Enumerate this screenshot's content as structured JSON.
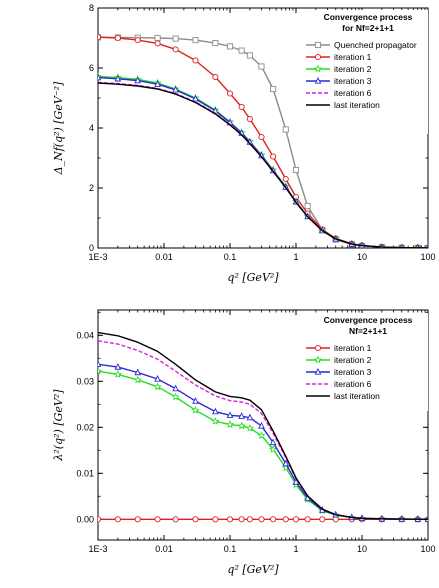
{
  "chart_data": [
    {
      "type": "line",
      "xscale": "log",
      "xlim": [
        0.001,
        100
      ],
      "ylim": [
        0,
        8
      ],
      "xticks": [
        0.001,
        0.01,
        0.1,
        1,
        10,
        100
      ],
      "xtick_labels": [
        "1E-3",
        "0.01",
        "0.1",
        "1",
        "10",
        "100"
      ],
      "yticks": [
        0,
        2,
        4,
        6,
        8
      ],
      "ytick_labels": [
        "0",
        "2",
        "4",
        "6",
        "8"
      ],
      "xlabel": "q² [GeV²]",
      "ylabel": "Δ_Nf(q²) [GeV⁻²]",
      "legend_title": [
        "Convergence process",
        "for Nf=2+1+1"
      ],
      "legend_position": "top-right",
      "series": [
        {
          "name": "Quenched propagator",
          "color": "#8c8c8c",
          "marker": "square",
          "dash": "",
          "x": [
            0.001,
            0.002,
            0.004,
            0.008,
            0.015,
            0.03,
            0.06,
            0.1,
            0.15,
            0.2,
            0.3,
            0.45,
            0.7,
            1.0,
            1.5,
            2.5,
            4,
            7,
            10,
            20,
            40,
            70,
            100
          ],
          "y": [
            7.02,
            7.02,
            7.01,
            7.0,
            6.98,
            6.93,
            6.83,
            6.72,
            6.58,
            6.42,
            6.05,
            5.3,
            3.95,
            2.6,
            1.4,
            0.6,
            0.28,
            0.12,
            0.07,
            0.03,
            0.01,
            0.005,
            0.003
          ]
        },
        {
          "name": "iteration 1",
          "color": "#e02020",
          "marker": "circle",
          "dash": "",
          "x": [
            0.001,
            0.002,
            0.004,
            0.008,
            0.015,
            0.03,
            0.06,
            0.1,
            0.15,
            0.2,
            0.3,
            0.45,
            0.7,
            1.0,
            1.5,
            2.5,
            4,
            7,
            10,
            20,
            40,
            70,
            100
          ],
          "y": [
            7.03,
            7.0,
            6.93,
            6.82,
            6.62,
            6.25,
            5.7,
            5.15,
            4.7,
            4.3,
            3.7,
            3.05,
            2.3,
            1.7,
            1.15,
            0.62,
            0.32,
            0.14,
            0.08,
            0.03,
            0.01,
            0.005,
            0.003
          ]
        },
        {
          "name": "iteration 2",
          "color": "#22dd22",
          "marker": "star",
          "dash": "",
          "x": [
            0.001,
            0.002,
            0.004,
            0.008,
            0.015,
            0.03,
            0.06,
            0.1,
            0.15,
            0.2,
            0.3,
            0.45,
            0.7,
            1.0,
            1.5,
            2.5,
            4,
            7,
            10,
            20,
            40,
            70,
            100
          ],
          "y": [
            5.72,
            5.68,
            5.62,
            5.5,
            5.3,
            5.0,
            4.6,
            4.2,
            3.85,
            3.55,
            3.1,
            2.6,
            2.05,
            1.55,
            1.05,
            0.58,
            0.3,
            0.13,
            0.08,
            0.03,
            0.01,
            0.005,
            0.003
          ]
        },
        {
          "name": "iteration 3",
          "color": "#2a2ad8",
          "marker": "triangle",
          "dash": "",
          "x": [
            0.001,
            0.002,
            0.004,
            0.008,
            0.015,
            0.03,
            0.06,
            0.1,
            0.15,
            0.2,
            0.3,
            0.45,
            0.7,
            1.0,
            1.5,
            2.5,
            4,
            7,
            10,
            20,
            40,
            70,
            100
          ],
          "y": [
            5.68,
            5.64,
            5.58,
            5.46,
            5.27,
            4.97,
            4.57,
            4.18,
            3.83,
            3.53,
            3.08,
            2.58,
            2.03,
            1.54,
            1.05,
            0.58,
            0.3,
            0.13,
            0.08,
            0.03,
            0.01,
            0.005,
            0.003
          ]
        },
        {
          "name": "iteration 6",
          "color": "#e020e0",
          "marker": "",
          "dash": "4,2",
          "x": [
            0.001,
            0.002,
            0.004,
            0.008,
            0.015,
            0.03,
            0.06,
            0.1,
            0.15,
            0.2,
            0.3,
            0.45,
            0.7,
            1.0,
            1.5,
            2.5,
            4,
            7,
            10,
            20,
            40,
            70,
            100
          ],
          "y": [
            5.52,
            5.48,
            5.42,
            5.32,
            5.15,
            4.87,
            4.49,
            4.12,
            3.78,
            3.49,
            3.05,
            2.56,
            2.02,
            1.53,
            1.04,
            0.58,
            0.3,
            0.13,
            0.08,
            0.03,
            0.01,
            0.005,
            0.003
          ]
        },
        {
          "name": "last iteration",
          "color": "#000000",
          "marker": "",
          "dash": "",
          "x": [
            0.001,
            0.002,
            0.004,
            0.008,
            0.015,
            0.03,
            0.06,
            0.1,
            0.15,
            0.2,
            0.3,
            0.45,
            0.7,
            1.0,
            1.5,
            2.5,
            4,
            7,
            10,
            20,
            40,
            70,
            100
          ],
          "y": [
            5.5,
            5.46,
            5.4,
            5.3,
            5.13,
            4.85,
            4.47,
            4.1,
            3.77,
            3.48,
            3.04,
            2.55,
            2.01,
            1.52,
            1.04,
            0.58,
            0.3,
            0.13,
            0.08,
            0.03,
            0.01,
            0.005,
            0.003
          ]
        }
      ]
    },
    {
      "type": "line",
      "xscale": "log",
      "xlim": [
        0.001,
        100
      ],
      "ylim": [
        -0.0045,
        0.0455
      ],
      "xticks": [
        0.001,
        0.01,
        0.1,
        1,
        10,
        100
      ],
      "xtick_labels": [
        "1E-3",
        "0.01",
        "0.1",
        "1",
        "10",
        "100"
      ],
      "yticks": [
        0,
        0.01,
        0.02,
        0.03,
        0.04
      ],
      "ytick_labels": [
        "0.00",
        "0.01",
        "0.02",
        "0.03",
        "0.04"
      ],
      "xlabel": "q² [GeV²]",
      "ylabel": "λ²(q²) [GeV²]",
      "legend_title": [
        "Convergence process",
        "Nf=2+1+1"
      ],
      "legend_position": "top-right",
      "series": [
        {
          "name": "iteration 1",
          "color": "#e02020",
          "marker": "circle",
          "dash": "",
          "x": [
            0.001,
            0.002,
            0.004,
            0.008,
            0.015,
            0.03,
            0.06,
            0.1,
            0.15,
            0.2,
            0.3,
            0.45,
            0.7,
            1.0,
            1.5,
            2.5,
            4,
            7,
            10,
            20,
            40,
            70,
            100
          ],
          "y": [
            0,
            0,
            0,
            0,
            0,
            0,
            0,
            0,
            0,
            0,
            0,
            0,
            0,
            0,
            0,
            0,
            0,
            0,
            0,
            0,
            0,
            0,
            0
          ]
        },
        {
          "name": "iteration 2",
          "color": "#22dd22",
          "marker": "star",
          "dash": "",
          "x": [
            0.001,
            0.002,
            0.004,
            0.008,
            0.015,
            0.03,
            0.06,
            0.1,
            0.15,
            0.2,
            0.3,
            0.45,
            0.7,
            1.0,
            1.5,
            2.5,
            4,
            7,
            10,
            20,
            40,
            70,
            100
          ],
          "y": [
            0.0322,
            0.0315,
            0.0303,
            0.0288,
            0.0266,
            0.0237,
            0.0213,
            0.0206,
            0.0203,
            0.0198,
            0.0182,
            0.0152,
            0.0112,
            0.0075,
            0.0043,
            0.0019,
            0.0009,
            0.0004,
            0.0002,
            0.0001,
            5e-05,
            2e-05,
            1e-05
          ]
        },
        {
          "name": "iteration 3",
          "color": "#2a2ad8",
          "marker": "triangle",
          "dash": "",
          "x": [
            0.001,
            0.002,
            0.004,
            0.008,
            0.015,
            0.03,
            0.06,
            0.1,
            0.15,
            0.2,
            0.3,
            0.45,
            0.7,
            1.0,
            1.5,
            2.5,
            4,
            7,
            10,
            20,
            40,
            70,
            100
          ],
          "y": [
            0.0337,
            0.0331,
            0.0319,
            0.0305,
            0.0284,
            0.0257,
            0.0234,
            0.0226,
            0.0224,
            0.0221,
            0.0203,
            0.0167,
            0.0121,
            0.0081,
            0.0046,
            0.002,
            0.001,
            0.0004,
            0.0002,
            0.0001,
            5e-05,
            2e-05,
            1e-05
          ]
        },
        {
          "name": "iteration 6",
          "color": "#e020e0",
          "marker": "",
          "dash": "4,2",
          "x": [
            0.001,
            0.002,
            0.004,
            0.008,
            0.015,
            0.03,
            0.06,
            0.1,
            0.15,
            0.2,
            0.3,
            0.45,
            0.7,
            1.0,
            1.5,
            2.5,
            4,
            7,
            10,
            20,
            40,
            70,
            100
          ],
          "y": [
            0.0388,
            0.0381,
            0.0367,
            0.0348,
            0.0322,
            0.0292,
            0.0268,
            0.0258,
            0.0255,
            0.025,
            0.023,
            0.0187,
            0.0134,
            0.0088,
            0.005,
            0.0022,
            0.001,
            0.0004,
            0.0002,
            0.0001,
            5e-05,
            2e-05,
            1e-05
          ]
        },
        {
          "name": "last iteration",
          "color": "#000000",
          "marker": "",
          "dash": "",
          "x": [
            0.001,
            0.002,
            0.004,
            0.008,
            0.015,
            0.03,
            0.06,
            0.1,
            0.15,
            0.2,
            0.3,
            0.45,
            0.7,
            1.0,
            1.5,
            2.5,
            4,
            7,
            10,
            20,
            40,
            70,
            100
          ],
          "y": [
            0.0406,
            0.0399,
            0.0385,
            0.0365,
            0.0337,
            0.0303,
            0.0277,
            0.0267,
            0.0264,
            0.0259,
            0.0238,
            0.0192,
            0.0137,
            0.009,
            0.0051,
            0.0022,
            0.001,
            0.0004,
            0.0002,
            0.0001,
            5e-05,
            2e-05,
            1e-05
          ]
        }
      ]
    }
  ]
}
